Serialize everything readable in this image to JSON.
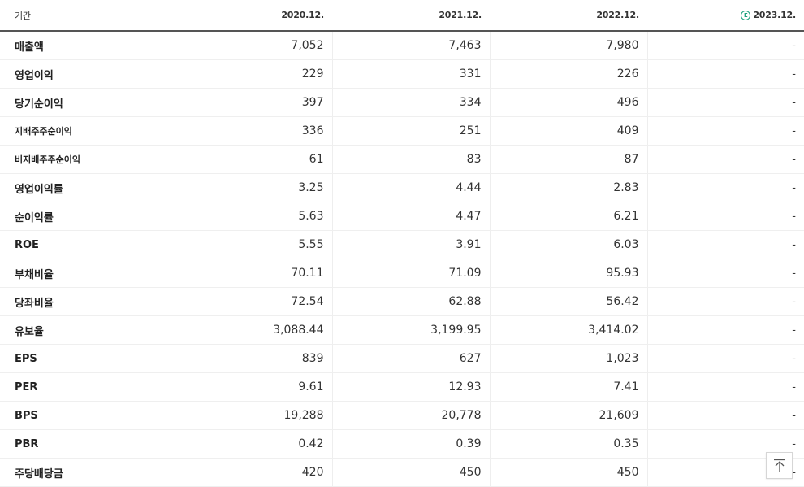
{
  "header": {
    "period_label": "기간",
    "years": [
      "2020.12.",
      "2021.12.",
      "2022.12.",
      "2023.12."
    ],
    "estimate_badge": "E"
  },
  "rows": [
    {
      "label": "매출액",
      "values": [
        "7,052",
        "7,463",
        "7,980",
        "-"
      ]
    },
    {
      "label": "영업이익",
      "values": [
        "229",
        "331",
        "226",
        "-"
      ]
    },
    {
      "label": "당기순이익",
      "values": [
        "397",
        "334",
        "496",
        "-"
      ]
    },
    {
      "label": "지배주주순이익",
      "values": [
        "336",
        "251",
        "409",
        "-"
      ]
    },
    {
      "label": "비지배주주순이익",
      "values": [
        "61",
        "83",
        "87",
        "-"
      ]
    },
    {
      "label": "영업이익률",
      "values": [
        "3.25",
        "4.44",
        "2.83",
        "-"
      ]
    },
    {
      "label": "순이익률",
      "values": [
        "5.63",
        "4.47",
        "6.21",
        "-"
      ]
    },
    {
      "label": "ROE",
      "values": [
        "5.55",
        "3.91",
        "6.03",
        "-"
      ]
    },
    {
      "label": "부채비율",
      "values": [
        "70.11",
        "71.09",
        "95.93",
        "-"
      ]
    },
    {
      "label": "당좌비율",
      "values": [
        "72.54",
        "62.88",
        "56.42",
        "-"
      ]
    },
    {
      "label": "유보율",
      "values": [
        "3,088.44",
        "3,199.95",
        "3,414.02",
        "-"
      ]
    },
    {
      "label": "EPS",
      "values": [
        "839",
        "627",
        "1,023",
        "-"
      ]
    },
    {
      "label": "PER",
      "values": [
        "9.61",
        "12.93",
        "7.41",
        "-"
      ]
    },
    {
      "label": "BPS",
      "values": [
        "19,288",
        "20,778",
        "21,609",
        "-"
      ]
    },
    {
      "label": "PBR",
      "values": [
        "0.42",
        "0.39",
        "0.35",
        "-"
      ]
    },
    {
      "label": "주당배당금",
      "values": [
        "420",
        "450",
        "450",
        "-"
      ]
    }
  ],
  "colors": {
    "estimate_accent": "#1aa07c",
    "header_rule": "#555555"
  },
  "icons": {
    "estimate": "estimate-badge-icon",
    "scroll_top": "arrow-up-to-top-icon"
  }
}
